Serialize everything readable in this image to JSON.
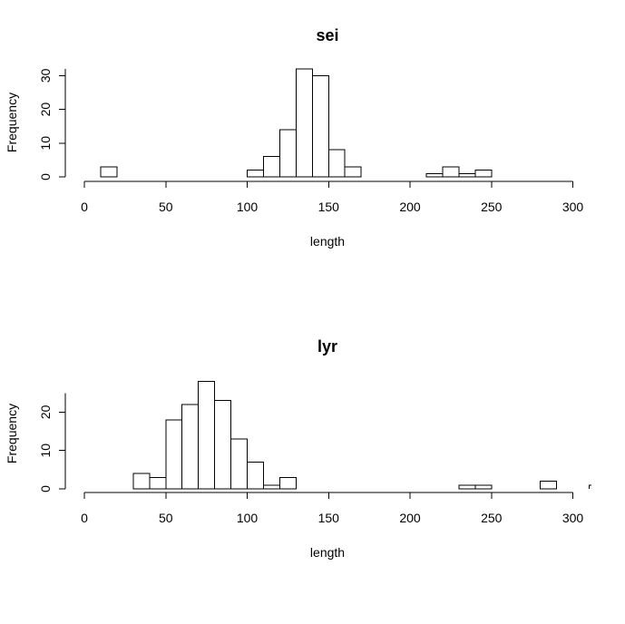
{
  "chart_data": [
    {
      "type": "histogram",
      "title": "sei",
      "xlabel": "length",
      "ylabel": "Frequency",
      "xlim": [
        0,
        310
      ],
      "x_ticks": [
        0,
        50,
        100,
        150,
        200,
        250,
        300
      ],
      "ylim": [
        0,
        32
      ],
      "y_ticks": [
        0,
        10,
        20,
        30
      ],
      "bin_width": 10,
      "bins": [
        {
          "start": 10,
          "end": 20,
          "count": 3
        },
        {
          "start": 100,
          "end": 110,
          "count": 2
        },
        {
          "start": 110,
          "end": 120,
          "count": 6
        },
        {
          "start": 120,
          "end": 130,
          "count": 14
        },
        {
          "start": 130,
          "end": 140,
          "count": 32
        },
        {
          "start": 140,
          "end": 150,
          "count": 30
        },
        {
          "start": 150,
          "end": 160,
          "count": 8
        },
        {
          "start": 160,
          "end": 170,
          "count": 3
        },
        {
          "start": 210,
          "end": 220,
          "count": 1
        },
        {
          "start": 220,
          "end": 230,
          "count": 3
        },
        {
          "start": 230,
          "end": 240,
          "count": 1
        },
        {
          "start": 240,
          "end": 250,
          "count": 2
        }
      ]
    },
    {
      "type": "histogram",
      "title": "lyr",
      "xlabel": "length",
      "ylabel": "Frequency",
      "xlim": [
        0,
        310
      ],
      "x_ticks": [
        0,
        50,
        100,
        150,
        200,
        250,
        300
      ],
      "ylim": [
        0,
        25
      ],
      "y_ticks": [
        0,
        10,
        20
      ],
      "bin_width": 10,
      "bins": [
        {
          "start": 30,
          "end": 40,
          "count": 4
        },
        {
          "start": 40,
          "end": 50,
          "count": 3
        },
        {
          "start": 50,
          "end": 60,
          "count": 18
        },
        {
          "start": 60,
          "end": 70,
          "count": 22
        },
        {
          "start": 70,
          "end": 80,
          "count": 28
        },
        {
          "start": 80,
          "end": 90,
          "count": 23
        },
        {
          "start": 90,
          "end": 100,
          "count": 13
        },
        {
          "start": 100,
          "end": 110,
          "count": 7
        },
        {
          "start": 110,
          "end": 120,
          "count": 1
        },
        {
          "start": 120,
          "end": 130,
          "count": 3
        },
        {
          "start": 230,
          "end": 240,
          "count": 1
        },
        {
          "start": 240,
          "end": 250,
          "count": 1
        },
        {
          "start": 280,
          "end": 290,
          "count": 2
        },
        {
          "start": 310,
          "end": 320,
          "count": 1
        }
      ]
    }
  ]
}
